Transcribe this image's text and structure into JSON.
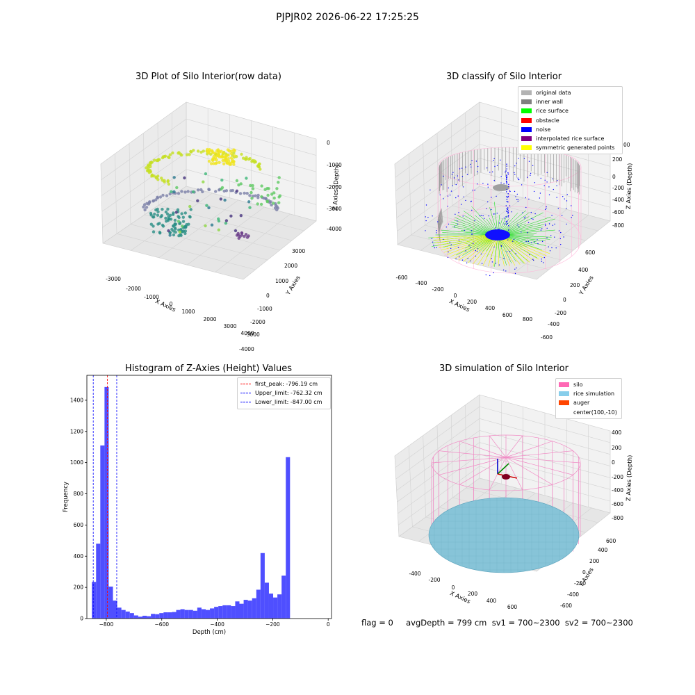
{
  "suptitle": "PJPJR02 2026-06-22 17:25:25",
  "footer": "flag = 0     avgDepth = 799 cm  sv1 = 700~2300  sv2 = 700~2300",
  "chart_data": [
    {
      "type": "scatter3d",
      "title": "3D Plot of Silo Interior(row data)",
      "xlabel": "X Axies",
      "ylabel": "Y Axies",
      "zlabel": "Z Axies (Depth)",
      "x_ticks": [
        "-3000",
        "-2000",
        "-1000",
        "0",
        "1000",
        "2000",
        "3000",
        "4000"
      ],
      "y_ticks": [
        "3000",
        "2000",
        "1000",
        "0",
        "-1000",
        "-2000",
        "-3000",
        "-4000"
      ],
      "z_ticks": [
        "0",
        "-1000",
        "-2000",
        "-3000",
        "-4000"
      ],
      "colormap": "viridis"
    },
    {
      "type": "scatter3d",
      "title": "3D classify of Silo Interior",
      "xlabel": "X Axies",
      "ylabel": "Y Axies",
      "zlabel": "Z Axies (Depth)",
      "x_ticks": [
        "-600",
        "-400",
        "-200",
        "0",
        "200",
        "400",
        "600",
        "800"
      ],
      "y_ticks": [
        "600",
        "400",
        "200",
        "0",
        "-200",
        "-400",
        "-600"
      ],
      "z_ticks": [
        "200",
        "0",
        "-200",
        "-400",
        "-600",
        "-800"
      ],
      "z_top_label": "00",
      "legend": [
        {
          "name": "original data",
          "color": "#b3b3b3"
        },
        {
          "name": "inner wall",
          "color": "#808080"
        },
        {
          "name": "rice surface",
          "color": "#00ff00"
        },
        {
          "name": "obstacle",
          "color": "#ff0000"
        },
        {
          "name": "noise",
          "color": "#0000ff"
        },
        {
          "name": "interpolated rice surface",
          "color": "#800080"
        },
        {
          "name": "symmetric generated points",
          "color": "#ffff00"
        }
      ]
    },
    {
      "type": "bar",
      "title": "Histogram of Z-Axies (Height) Values",
      "xlabel": "Depth (cm)",
      "ylabel": "Frequency",
      "xlim": [
        -870,
        12
      ],
      "ylim": [
        0,
        1560
      ],
      "x_ticks": [
        -800,
        -600,
        -400,
        -200,
        0
      ],
      "y_ticks": [
        0,
        200,
        400,
        600,
        800,
        1000,
        1200,
        1400
      ],
      "bin_width": 15.2,
      "bin_start": -852,
      "values": [
        235,
        480,
        1110,
        1485,
        205,
        115,
        70,
        55,
        45,
        35,
        20,
        12,
        18,
        15,
        30,
        28,
        35,
        40,
        40,
        42,
        55,
        60,
        55,
        55,
        50,
        70,
        60,
        55,
        65,
        75,
        80,
        85,
        85,
        80,
        110,
        95,
        120,
        115,
        130,
        185,
        420,
        230,
        160,
        135,
        155,
        275,
        1035
      ],
      "bar_color": "#4646ff",
      "lines": [
        {
          "name": "first_peak: -796.19 cm",
          "value": -796.19,
          "color": "#ff0000"
        },
        {
          "name": "Upper_limit: -762.32 cm",
          "value": -762.32,
          "color": "#0000ff"
        },
        {
          "name": "Lower_limit: -847.00 cm",
          "value": -847.0,
          "color": "#0000ff"
        }
      ]
    },
    {
      "type": "surface3d",
      "title": "3D simulation of Silo Interior",
      "xlabel": "X Axies",
      "ylabel": "Y Axies",
      "zlabel": "Z Axies (Depth)",
      "x_ticks": [
        "-400",
        "-200",
        "0",
        "200",
        "400",
        "600"
      ],
      "y_ticks": [
        "600",
        "400",
        "200",
        "0",
        "-200",
        "-400",
        "-600"
      ],
      "z_ticks": [
        "400",
        "200",
        "0",
        "-200",
        "-400",
        "-600",
        "-800"
      ],
      "legend": [
        {
          "name": "silo",
          "color": "#ff69b4"
        },
        {
          "name": "rice simulation",
          "color": "#87ceeb"
        },
        {
          "name": "auger",
          "color": "#ff4500"
        },
        {
          "name": "center(100,-10)",
          "color": ""
        }
      ]
    }
  ]
}
